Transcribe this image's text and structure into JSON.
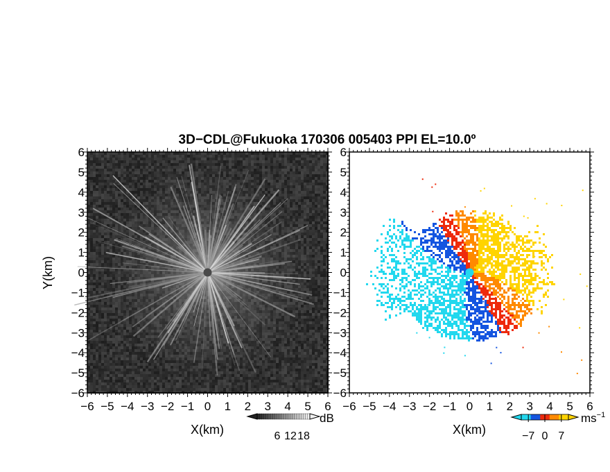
{
  "chart_data": {
    "title": "3D−CDL@Fukuoka 170306 005403 PPI EL=10.0º",
    "panels": [
      {
        "id": "backscatter",
        "type": "heatmap",
        "xlabel": "X(km)",
        "ylabel": "Y(km)",
        "xlim": [
          -6,
          6
        ],
        "ylim": [
          -6,
          6
        ],
        "xticks": [
          "−6",
          "−5",
          "−4",
          "−3",
          "−2",
          "−1",
          "0",
          "1",
          "2",
          "3",
          "4",
          "5",
          "6"
        ],
        "yticks": [
          "6",
          "5",
          "4",
          "3",
          "2",
          "1",
          "0",
          "−1",
          "−2",
          "−3",
          "−4",
          "−5",
          "−6"
        ],
        "colorbar": {
          "unit": "dB",
          "ticks": [
            "6",
            "12",
            "18"
          ],
          "range": [
            0,
            24
          ],
          "colormap": "grayscale"
        }
      },
      {
        "id": "doppler",
        "type": "heatmap",
        "xlabel": "X(km)",
        "xlim": [
          -6,
          6
        ],
        "ylim": [
          -6,
          6
        ],
        "xticks": [
          "−6",
          "−5",
          "−4",
          "−3",
          "−2",
          "−1",
          "0",
          "1",
          "2",
          "3",
          "4",
          "5",
          "6"
        ],
        "yticks": [
          "6",
          "5",
          "4",
          "3",
          "2",
          "1",
          "0",
          "−1",
          "−2",
          "−3",
          "−4",
          "−5",
          "−6"
        ],
        "colorbar": {
          "unit": "ms",
          "unit_exp": "−1",
          "ticks": [
            "−7",
            "0",
            "7"
          ],
          "range": [
            -10,
            10
          ],
          "colormap": "cyan-blue-red-orange-yellow"
        }
      }
    ]
  },
  "colors": {
    "cyan": "#22d8ee",
    "blue": "#1455e0",
    "red": "#ee2a0c",
    "orange": "#ff8a00",
    "yellow": "#ffd400",
    "bg_dark": "#303030"
  }
}
